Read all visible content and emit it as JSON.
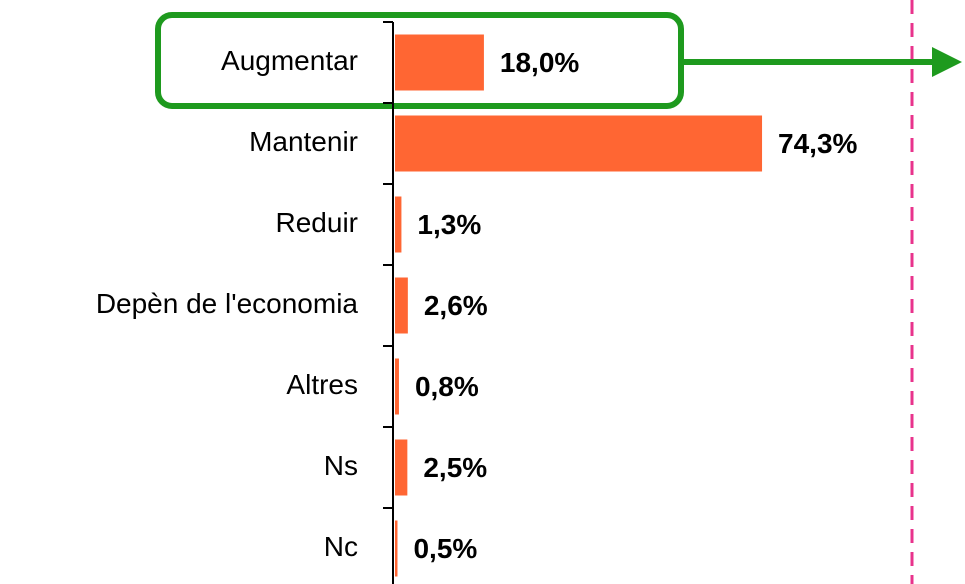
{
  "chart_data": {
    "type": "barh",
    "categories": [
      "Augmentar",
      "Mantenir",
      "Reduir",
      "Depèn de l'economia",
      "Altres",
      "Ns",
      "Nc"
    ],
    "values": [
      18.0,
      74.3,
      1.3,
      2.6,
      0.8,
      2.5,
      0.5
    ],
    "value_labels": [
      "18,0%",
      "74,3%",
      "1,3%",
      "2,6%",
      "0,8%",
      "2,5%",
      "0,5%"
    ],
    "color": "#ff6633",
    "xlim": [
      0,
      100
    ]
  }
}
